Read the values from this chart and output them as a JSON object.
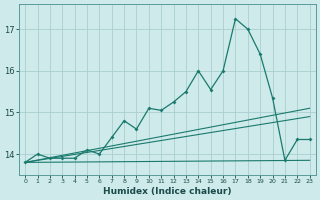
{
  "xlabel": "Humidex (Indice chaleur)",
  "ylabel": "",
  "background_color": "#ceeaea",
  "grid_color": "#aacece",
  "line_color": "#1a7a6e",
  "x_values": [
    0,
    1,
    2,
    3,
    4,
    5,
    6,
    7,
    8,
    9,
    10,
    11,
    12,
    13,
    14,
    15,
    16,
    17,
    18,
    19,
    20,
    21,
    22,
    23
  ],
  "main_y": [
    13.8,
    14.0,
    13.9,
    13.9,
    13.9,
    14.1,
    14.0,
    14.4,
    14.8,
    14.6,
    15.1,
    15.05,
    15.25,
    15.5,
    16.0,
    15.55,
    16.0,
    17.25,
    17.0,
    16.4,
    15.35,
    13.85,
    14.35,
    14.35
  ],
  "line1_x": [
    0,
    23
  ],
  "line1_y": [
    13.8,
    15.1
  ],
  "line2_x": [
    0,
    23
  ],
  "line2_y": [
    13.8,
    14.9
  ],
  "line3_x": [
    0,
    23
  ],
  "line3_y": [
    13.8,
    13.85
  ],
  "ylim": [
    13.5,
    17.6
  ],
  "yticks": [
    14,
    15,
    16,
    17
  ],
  "xticks": [
    0,
    1,
    2,
    3,
    4,
    5,
    6,
    7,
    8,
    9,
    10,
    11,
    12,
    13,
    14,
    15,
    16,
    17,
    18,
    19,
    20,
    21,
    22,
    23
  ],
  "xlim": [
    -0.5,
    23.5
  ]
}
